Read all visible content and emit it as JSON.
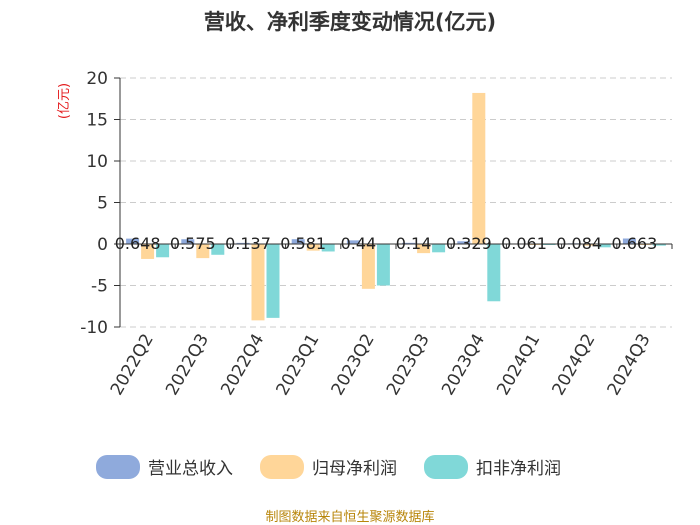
{
  "chart_data": {
    "type": "bar",
    "title": "营收、净利季度变动情况(亿元)",
    "ylabel": "(亿元)",
    "ylim": [
      -10,
      20
    ],
    "yticks": [
      20,
      15,
      10,
      5,
      0,
      -5,
      -10
    ],
    "grid": true,
    "legend_position": "bottom",
    "categories": [
      "2022Q2",
      "2022Q3",
      "2022Q4",
      "2023Q1",
      "2023Q2",
      "2023Q3",
      "2023Q4",
      "2024Q1",
      "2024Q2",
      "2024Q3"
    ],
    "series": [
      {
        "name": "营业总收入",
        "color": "#8faadc",
        "values": [
          0.648,
          0.575,
          0.137,
          0.581,
          0.44,
          0.14,
          0.329,
          0.061,
          0.084,
          0.663
        ],
        "labels": [
          "0.648",
          "0.575",
          "0.137",
          "0.581",
          "0.44",
          "0.14",
          "0.329",
          "0.061",
          "0.084",
          "0.663"
        ]
      },
      {
        "name": "归母净利润",
        "color": "#ffd699",
        "values": [
          -1.8,
          -1.7,
          -9.2,
          -0.8,
          -5.4,
          -1.1,
          18.2,
          -0.1,
          -0.2,
          -0.05
        ]
      },
      {
        "name": "扣非净利润",
        "color": "#80d8d8",
        "values": [
          -1.6,
          -1.3,
          -8.9,
          -0.9,
          -5.0,
          -1.0,
          -6.9,
          -0.1,
          -0.4,
          -0.2
        ]
      }
    ]
  },
  "footer": {
    "source": "制图数据来自恒生聚源数据库"
  }
}
